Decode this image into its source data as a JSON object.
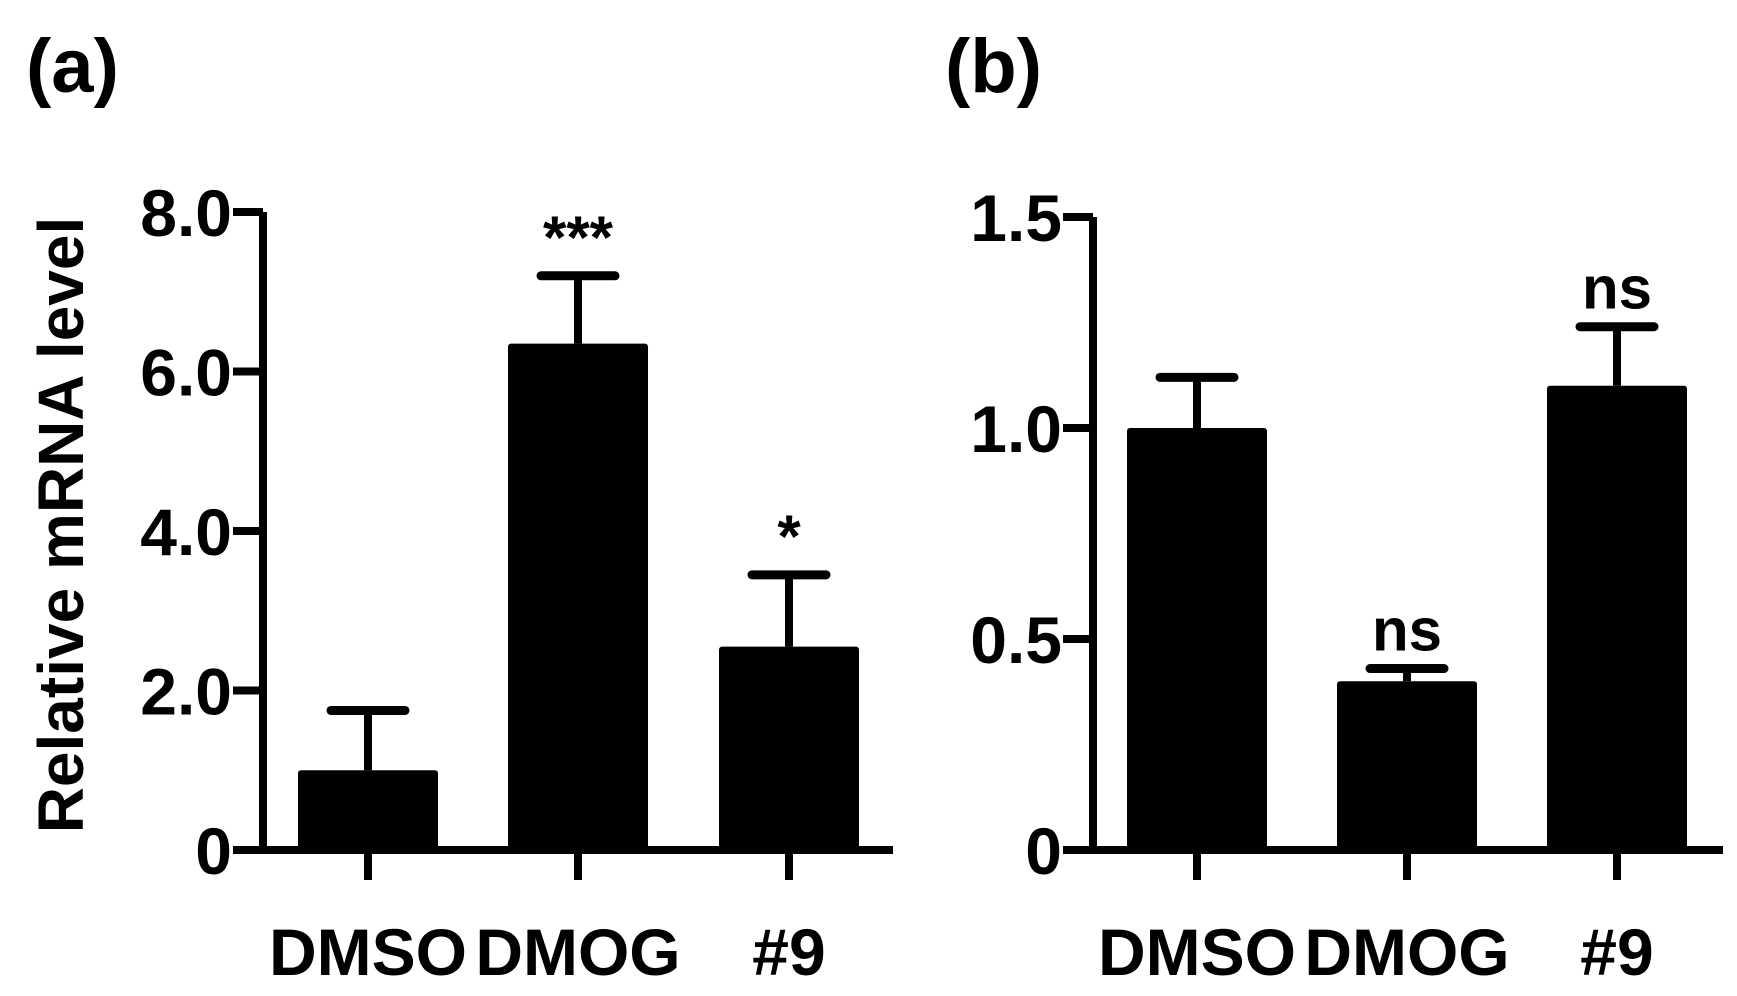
{
  "figure": {
    "y_axis_label": "Relative mRNA level"
  },
  "chart_data": [
    {
      "type": "bar",
      "panel_label": "(a)",
      "categories": [
        "DMSO",
        "DMOG",
        "#9"
      ],
      "values": [
        1.0,
        6.35,
        2.55
      ],
      "errors": [
        0.75,
        0.85,
        0.9
      ],
      "significance": [
        "",
        "***",
        "*"
      ],
      "ylabel": "Relative mRNA level",
      "ylim": [
        0,
        8.0
      ],
      "yticks": [
        0,
        2.0,
        4.0,
        6.0,
        8.0
      ],
      "ytick_labels": [
        "0",
        "2.0",
        "4.0",
        "6.0",
        "8.0"
      ],
      "color": "#000000",
      "grid": false,
      "legend": "none"
    },
    {
      "type": "bar",
      "panel_label": "(b)",
      "categories": [
        "DMSO",
        "DMOG",
        "#9"
      ],
      "values": [
        1.0,
        0.4,
        1.1
      ],
      "errors": [
        0.12,
        0.03,
        0.14
      ],
      "significance": [
        "",
        "ns",
        "ns"
      ],
      "ylabel": "",
      "ylim": [
        0,
        1.5
      ],
      "yticks": [
        0,
        0.5,
        1.0,
        1.5
      ],
      "ytick_labels": [
        "0",
        "0.5",
        "1.0",
        "1.5"
      ],
      "color": "#000000",
      "grid": false,
      "legend": "none"
    }
  ]
}
